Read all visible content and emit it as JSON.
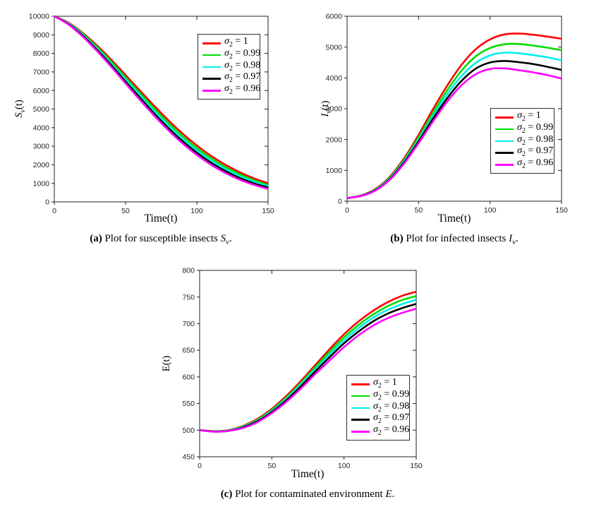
{
  "colors": {
    "background": "#ffffff",
    "axis": "#1f1f1f",
    "tick_label": "#262626",
    "red": "#ff0000",
    "green": "#00dd00",
    "cyan": "#00eeee",
    "black": "#000000",
    "magenta": "#ff00ff"
  },
  "captions": [
    {
      "tag": "(a)",
      "text": " Plot for susceptible insects ",
      "math": "S",
      "sub": "v",
      "period": "."
    },
    {
      "tag": "(b)",
      "text": " Plot for infected insects ",
      "math": "I",
      "sub": "v",
      "period": "."
    },
    {
      "tag": "(c)",
      "text": " Plot for contaminated environment ",
      "math": "E",
      "sub": "",
      "period": "."
    }
  ],
  "chart_data": [
    {
      "type": "line",
      "xlabel": "Time(t)",
      "ylabel_parts": {
        "main": "S",
        "sub": "ν",
        "rest": "(t)"
      },
      "xlim": [
        0,
        150
      ],
      "ylim": [
        0,
        10000
      ],
      "xticks": [
        0,
        50,
        100,
        150
      ],
      "yticks": [
        0,
        1000,
        2000,
        3000,
        4000,
        5000,
        6000,
        7000,
        8000,
        9000,
        10000
      ],
      "grid": false,
      "legend_position": "top-right",
      "x": [
        0,
        10,
        20,
        30,
        40,
        50,
        60,
        70,
        80,
        90,
        100,
        110,
        120,
        130,
        140,
        150
      ],
      "series": [
        {
          "name": "sigma2 = 1",
          "legend": {
            "sym": "σ",
            "sub": "2",
            "eq": " = 1"
          },
          "color": "#ff0000",
          "values": [
            10000,
            9650,
            9100,
            8420,
            7650,
            6830,
            6000,
            5180,
            4400,
            3680,
            3040,
            2480,
            2000,
            1600,
            1270,
            1000
          ]
        },
        {
          "name": "sigma2 = 0.99",
          "legend": {
            "sym": "σ",
            "sub": "2",
            "eq": " = 0.99"
          },
          "color": "#00dd00",
          "values": [
            10000,
            9620,
            9050,
            8340,
            7550,
            6710,
            5870,
            5040,
            4250,
            3540,
            2900,
            2350,
            1880,
            1490,
            1180,
            920
          ]
        },
        {
          "name": "sigma2 = 0.98",
          "legend": {
            "sym": "σ",
            "sub": "2",
            "eq": " = 0.98"
          },
          "color": "#00eeee",
          "values": [
            10000,
            9600,
            9000,
            8260,
            7450,
            6600,
            5740,
            4900,
            4120,
            3400,
            2780,
            2230,
            1770,
            1390,
            1090,
            840
          ]
        },
        {
          "name": "sigma2 = 0.97",
          "legend": {
            "sym": "σ",
            "sub": "2",
            "eq": " = 0.97"
          },
          "color": "#000000",
          "values": [
            10000,
            9570,
            8950,
            8190,
            7360,
            6480,
            5620,
            4770,
            3980,
            3270,
            2650,
            2110,
            1660,
            1290,
            1000,
            770
          ]
        },
        {
          "name": "sigma2 = 0.96",
          "legend": {
            "sym": "σ",
            "sub": "2",
            "eq": " = 0.96"
          },
          "color": "#ff00ff",
          "values": [
            10000,
            9550,
            8900,
            8120,
            7270,
            6380,
            5500,
            4650,
            3860,
            3150,
            2530,
            2000,
            1560,
            1200,
            920,
            700
          ]
        }
      ]
    },
    {
      "type": "line",
      "xlabel": "Time(t)",
      "ylabel_parts": {
        "main": "I",
        "sub": "ν",
        "rest": "(t)"
      },
      "xlim": [
        0,
        150
      ],
      "ylim": [
        0,
        6000
      ],
      "xticks": [
        0,
        50,
        100,
        150
      ],
      "yticks": [
        0,
        1000,
        2000,
        3000,
        4000,
        5000,
        6000
      ],
      "grid": false,
      "legend_position": "middle-right",
      "x": [
        0,
        10,
        20,
        30,
        40,
        50,
        60,
        70,
        80,
        90,
        100,
        110,
        120,
        130,
        140,
        150
      ],
      "series": [
        {
          "name": "sigma2 = 1",
          "legend": {
            "sym": "σ",
            "sub": "2",
            "eq": " = 1"
          },
          "color": "#ff0000",
          "values": [
            100,
            190,
            400,
            800,
            1400,
            2150,
            2980,
            3750,
            4420,
            4930,
            5250,
            5410,
            5440,
            5400,
            5340,
            5270
          ]
        },
        {
          "name": "sigma2 = 0.99",
          "legend": {
            "sym": "σ",
            "sub": "2",
            "eq": " = 0.99"
          },
          "color": "#00dd00",
          "values": [
            100,
            185,
            385,
            770,
            1350,
            2070,
            2860,
            3600,
            4230,
            4700,
            4970,
            5090,
            5100,
            5050,
            4980,
            4900
          ]
        },
        {
          "name": "sigma2 = 0.98",
          "legend": {
            "sym": "σ",
            "sub": "2",
            "eq": " = 0.98"
          },
          "color": "#00eeee",
          "values": [
            100,
            180,
            375,
            745,
            1310,
            2000,
            2760,
            3470,
            4060,
            4490,
            4730,
            4820,
            4800,
            4740,
            4670,
            4570
          ]
        },
        {
          "name": "sigma2 = 0.97",
          "legend": {
            "sym": "σ",
            "sub": "2",
            "eq": " = 0.97"
          },
          "color": "#000000",
          "values": [
            100,
            175,
            360,
            720,
            1270,
            1940,
            2670,
            3340,
            3900,
            4300,
            4500,
            4550,
            4510,
            4450,
            4360,
            4260
          ]
        },
        {
          "name": "sigma2 = 0.96",
          "legend": {
            "sym": "σ",
            "sub": "2",
            "eq": " = 0.96"
          },
          "color": "#ff00ff",
          "values": [
            100,
            170,
            350,
            700,
            1230,
            1880,
            2580,
            3230,
            3760,
            4120,
            4290,
            4310,
            4250,
            4180,
            4090,
            3980
          ]
        }
      ]
    },
    {
      "type": "line",
      "xlabel": "Time(t)",
      "ylabel_parts": {
        "main": "E",
        "sub": "",
        "rest": "(t)"
      },
      "xlim": [
        0,
        150
      ],
      "ylim": [
        450,
        800
      ],
      "xticks": [
        0,
        50,
        100,
        150
      ],
      "yticks": [
        450,
        500,
        550,
        600,
        650,
        700,
        750,
        800
      ],
      "grid": false,
      "legend_position": "bottom-right",
      "x": [
        0,
        10,
        20,
        30,
        40,
        50,
        60,
        70,
        80,
        90,
        100,
        110,
        120,
        130,
        140,
        150
      ],
      "series": [
        {
          "name": "sigma2 = 1",
          "legend": {
            "sym": "σ",
            "sub": "2",
            "eq": " = 1"
          },
          "color": "#ff0000",
          "values": [
            500,
            498,
            500,
            508,
            521,
            540,
            564,
            592,
            622,
            652,
            680,
            704,
            724,
            740,
            752,
            760
          ]
        },
        {
          "name": "sigma2 = 0.99",
          "legend": {
            "sym": "σ",
            "sub": "2",
            "eq": " = 0.99"
          },
          "color": "#00dd00",
          "values": [
            500,
            497.8,
            499.5,
            507,
            519.5,
            538,
            561,
            588.5,
            618,
            647,
            674,
            697.5,
            717,
            732.5,
            744,
            752
          ]
        },
        {
          "name": "sigma2 = 0.98",
          "legend": {
            "sym": "σ",
            "sub": "2",
            "eq": " = 0.98"
          },
          "color": "#00eeee",
          "values": [
            500,
            497.5,
            499,
            506,
            518,
            536,
            559,
            585.5,
            614,
            642,
            668.5,
            691.5,
            711,
            725.5,
            736.5,
            745
          ]
        },
        {
          "name": "sigma2 = 0.97",
          "legend": {
            "sym": "σ",
            "sub": "2",
            "eq": " = 0.97"
          },
          "color": "#000000",
          "values": [
            500,
            497.3,
            498.6,
            505,
            516.7,
            534,
            556,
            582,
            610,
            637,
            663,
            685,
            704,
            718.5,
            729,
            737
          ]
        },
        {
          "name": "sigma2 = 0.96",
          "legend": {
            "sym": "σ",
            "sub": "2",
            "eq": " = 0.96"
          },
          "color": "#ff00ff",
          "values": [
            500,
            497,
            498.5,
            504,
            515,
            532,
            553,
            578,
            605,
            631,
            656,
            678,
            696,
            710,
            720,
            728
          ]
        }
      ]
    }
  ]
}
